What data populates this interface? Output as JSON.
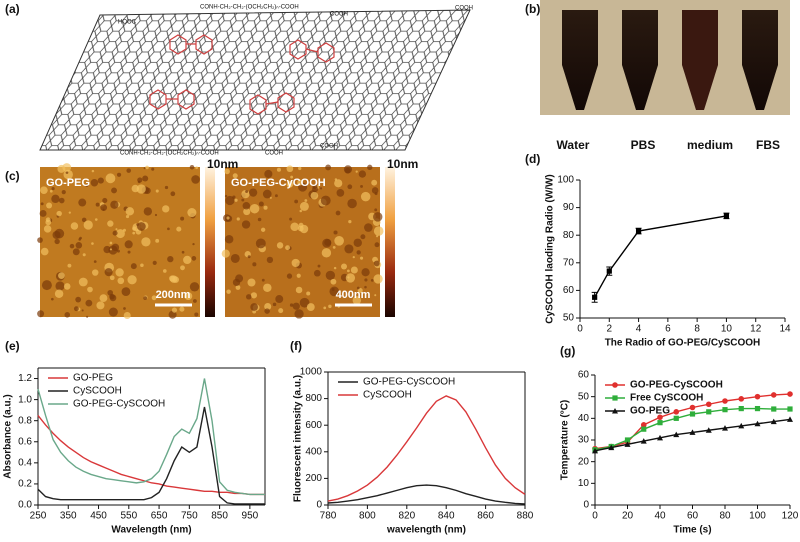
{
  "panel_labels": [
    "(a)",
    "(b)",
    "(c)",
    "(d)",
    "(e)",
    "(f)",
    "(g)"
  ],
  "structure_labels": [
    "CONH-CH₂-CH₂-(OCH₂CH₂)ₙ-COOH",
    "HOOC",
    "COOH",
    "COOH",
    "CONH-CH₂-CH₂-(OCH₂CH₂)ₙ-COOH",
    "COOH",
    "COOH"
  ],
  "photo_labels": [
    "Water",
    "PBS",
    "medium",
    "FBS"
  ],
  "afm": [
    {
      "title": "GO-PEG",
      "scale": "200nm",
      "colorbar": "10nm"
    },
    {
      "title": "GO-PEG-CyCOOH",
      "scale": "400nm",
      "colorbar": "10nm"
    }
  ],
  "chart_data": [
    {
      "type": "line",
      "xlabel": "The Radio of GO-PEG/CySCOOH",
      "ylabel": "CySCOOH laoding Radio (W/W)",
      "x": [
        1,
        2,
        4,
        10
      ],
      "series": [
        {
          "color": "#000000",
          "marker": "square",
          "values": [
            57.5,
            67,
            81.5,
            87
          ],
          "error": [
            1.8,
            1.5,
            1,
            1
          ]
        }
      ],
      "xlim": [
        0,
        14
      ],
      "xticks": [
        0,
        2,
        4,
        6,
        8,
        10,
        12,
        14
      ],
      "ylim": [
        50,
        100
      ],
      "yticks": [
        50,
        60,
        70,
        80,
        90,
        100
      ],
      "frame": false
    },
    {
      "type": "line",
      "xlabel": "Wavelength (nm)",
      "ylabel": "Absorbance (a.u.)",
      "legend": "upper left",
      "frame": true,
      "x": [
        250,
        275,
        300,
        325,
        350,
        375,
        400,
        425,
        450,
        475,
        500,
        525,
        550,
        575,
        600,
        625,
        650,
        675,
        700,
        725,
        750,
        775,
        800,
        825,
        850,
        875,
        900,
        925,
        950,
        975,
        1000
      ],
      "series": [
        {
          "name": "GO-PEG",
          "color": "#d9383a",
          "values": [
            0.85,
            0.76,
            0.68,
            0.61,
            0.55,
            0.5,
            0.45,
            0.41,
            0.38,
            0.35,
            0.32,
            0.29,
            0.27,
            0.25,
            0.23,
            0.21,
            0.2,
            0.18,
            0.17,
            0.16,
            0.15,
            0.14,
            0.13,
            0.13,
            0.12,
            0.12,
            0.11,
            0.11,
            0.1,
            0.1,
            0.1
          ]
        },
        {
          "name": "CySCOOH",
          "color": "#222222",
          "values": [
            0.15,
            0.08,
            0.06,
            0.05,
            0.05,
            0.05,
            0.05,
            0.05,
            0.05,
            0.05,
            0.05,
            0.05,
            0.05,
            0.05,
            0.05,
            0.07,
            0.12,
            0.25,
            0.42,
            0.55,
            0.5,
            0.55,
            0.93,
            0.55,
            0.08,
            0.02,
            0.01,
            0.01,
            0.01,
            0.01,
            0.01
          ]
        },
        {
          "name": "GO-PEG-CySCOOH",
          "color": "#6aa88a",
          "values": [
            1.1,
            0.85,
            0.62,
            0.5,
            0.42,
            0.36,
            0.32,
            0.29,
            0.27,
            0.25,
            0.24,
            0.23,
            0.22,
            0.21,
            0.22,
            0.25,
            0.32,
            0.48,
            0.65,
            0.72,
            0.68,
            0.82,
            1.2,
            0.8,
            0.22,
            0.14,
            0.12,
            0.11,
            0.1,
            0.1,
            0.1
          ]
        }
      ],
      "xlim": [
        250,
        1000
      ],
      "xticks": [
        250,
        350,
        450,
        550,
        650,
        750,
        850,
        950
      ],
      "ylim": [
        0,
        1.3
      ],
      "yticks": [
        {
          "value": 0,
          "label": "0.0"
        },
        {
          "value": 0.2,
          "label": "0.2"
        },
        {
          "value": 0.4,
          "label": "0.4"
        },
        {
          "value": 0.6,
          "label": "0.6"
        },
        {
          "value": 0.8,
          "label": "0.8"
        },
        {
          "value": 1,
          "label": "1.0"
        },
        {
          "value": 1.2,
          "label": "1.2"
        }
      ]
    },
    {
      "type": "line",
      "xlabel": "wavelength (nm)",
      "ylabel": "Fluorescent intensity (a.u.)",
      "legend": "upper left",
      "frame": true,
      "x": [
        780,
        785,
        790,
        795,
        800,
        805,
        810,
        815,
        820,
        825,
        830,
        835,
        840,
        845,
        850,
        855,
        860,
        865,
        870,
        875,
        880
      ],
      "series": [
        {
          "name": "GO-PEG-CySCOOH",
          "color": "#222222",
          "values": [
            15,
            20,
            30,
            40,
            55,
            70,
            90,
            110,
            130,
            145,
            150,
            145,
            130,
            110,
            85,
            65,
            45,
            30,
            20,
            12,
            8
          ]
        },
        {
          "name": "CySCOOH",
          "color": "#d9383a",
          "values": [
            30,
            45,
            70,
            105,
            150,
            210,
            285,
            375,
            475,
            580,
            690,
            780,
            820,
            790,
            700,
            570,
            430,
            300,
            200,
            130,
            80
          ]
        }
      ],
      "xlim": [
        780,
        880
      ],
      "xticks": [
        780,
        800,
        820,
        840,
        860,
        880
      ],
      "ylim": [
        0,
        1000
      ],
      "yticks": [
        0,
        200,
        400,
        600,
        800,
        1000
      ]
    },
    {
      "type": "line",
      "xlabel": "Time (s)",
      "ylabel": "Temperature (°C)",
      "legend": "upper left",
      "frame": false,
      "x": [
        0,
        10,
        20,
        30,
        40,
        50,
        60,
        70,
        80,
        90,
        100,
        110,
        120
      ],
      "series": [
        {
          "name": "GO-PEG-CySCOOH",
          "color": "#e0302e",
          "marker": "circle",
          "values": [
            26,
            27,
            29,
            37,
            40.5,
            43,
            45,
            46.5,
            48,
            49,
            50,
            50.8,
            51.2
          ]
        },
        {
          "name": "Free CySCOOH",
          "color": "#2fae3b",
          "marker": "square",
          "values": [
            25.5,
            27,
            30,
            35,
            38,
            40,
            42,
            43,
            44,
            44.5,
            44.5,
            44.3,
            44.3
          ]
        },
        {
          "name": "GO-PEG",
          "color": "#111111",
          "marker": "triangle",
          "values": [
            25,
            26.5,
            28,
            29.5,
            31,
            32.5,
            33.5,
            34.5,
            35.5,
            36.5,
            37.5,
            38.5,
            39.5
          ]
        }
      ],
      "xlim": [
        0,
        120
      ],
      "xticks": [
        0,
        20,
        40,
        60,
        80,
        100,
        120
      ],
      "ylim": [
        0,
        60
      ],
      "yticks": [
        0,
        10,
        20,
        30,
        40,
        50,
        60
      ]
    }
  ]
}
